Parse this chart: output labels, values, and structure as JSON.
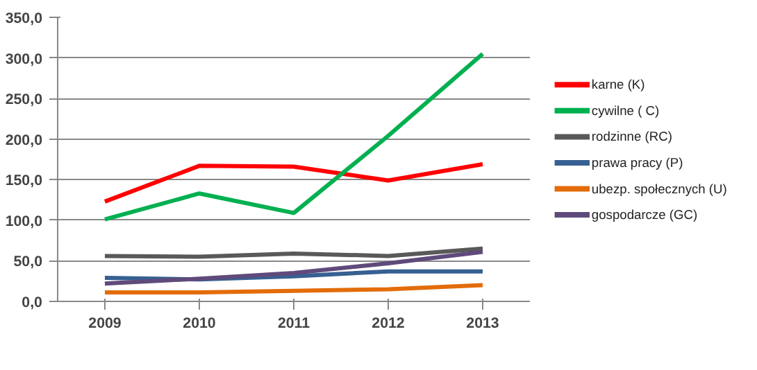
{
  "chart_data": {
    "type": "line",
    "categories": [
      "2009",
      "2010",
      "2011",
      "2012",
      "2013"
    ],
    "series": [
      {
        "name": "karne (K)",
        "color": "#ff0000",
        "values": [
          123,
          167,
          166,
          149,
          169
        ]
      },
      {
        "name": "cywilne ( C)",
        "color": "#00b050",
        "values": [
          101,
          133,
          109,
          204,
          305
        ]
      },
      {
        "name": "rodzinne (RC)",
        "color": "#595959",
        "values": [
          56,
          55,
          59,
          56,
          65
        ]
      },
      {
        "name": "prawa pracy (P)",
        "color": "#376092",
        "values": [
          29,
          27,
          31,
          37,
          37
        ]
      },
      {
        "name": "ubezp. społecznych (U)",
        "color": "#e36c09",
        "values": [
          11,
          11,
          13,
          15,
          20
        ]
      },
      {
        "name": "gospodarcze (GC)",
        "color": "#604a7b",
        "values": [
          22,
          28,
          35,
          47,
          61
        ]
      }
    ],
    "ylim": [
      0,
      350
    ],
    "yticks": [
      {
        "value": 0,
        "label": "0,0"
      },
      {
        "value": 50,
        "label": "50,0"
      },
      {
        "value": 100,
        "label": "100,0"
      },
      {
        "value": 150,
        "label": "150,0"
      },
      {
        "value": 200,
        "label": "200,0"
      },
      {
        "value": 250,
        "label": "250,0"
      },
      {
        "value": 300,
        "label": "300,0"
      },
      {
        "value": 350,
        "label": "350,0"
      }
    ],
    "grid": "y",
    "legend": "right",
    "marker": "none",
    "line_style": "solid"
  }
}
